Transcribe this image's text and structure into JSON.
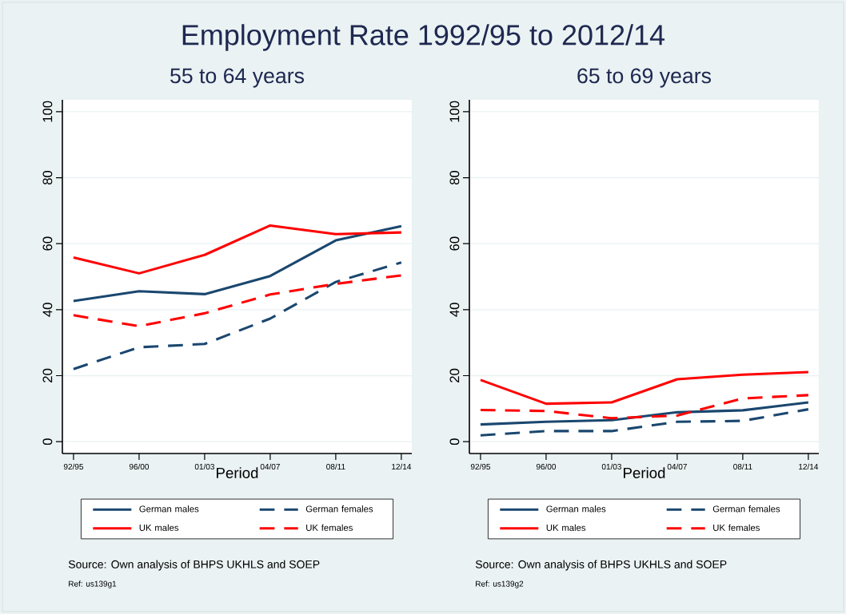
{
  "chart_data": [
    {
      "type": "line",
      "title": "Employment Rate 1992/95 to 2012/14",
      "subtitle": "55 to 64 years",
      "xlabel": "Period",
      "categories": [
        "92/95",
        "96/00",
        "01/03",
        "04/07",
        "08/11",
        "12/14"
      ],
      "series": [
        {
          "name": "German males",
          "color": "#1a476f",
          "line_style": "solid",
          "values": [
            42.6,
            45.6,
            44.7,
            50.2,
            61,
            65.3
          ]
        },
        {
          "name": "German females",
          "color": "#1a476f",
          "line_style": "dashed",
          "values": [
            22,
            28.6,
            29.6,
            37.3,
            48.4,
            54.3
          ]
        },
        {
          "name": "UK males",
          "color": "#ff0000",
          "line_style": "solid",
          "values": [
            55.8,
            51,
            56.6,
            65.5,
            62.9,
            63.4
          ]
        },
        {
          "name": "UK females",
          "color": "#ff0000",
          "line_style": "dashed",
          "values": [
            38.3,
            35,
            38.9,
            44.6,
            47.8,
            50.4
          ]
        }
      ],
      "ylim": [
        -3.6,
        103.6
      ],
      "yticks": [
        0,
        20,
        40,
        60,
        80,
        100
      ],
      "grid": "y",
      "legend": "bottom",
      "annotations": [
        "Source: Own analysis of BHPS UKHLS and SOEP",
        "Ref: us139g1"
      ]
    },
    {
      "type": "line",
      "subtitle": "65 to 69 years",
      "xlabel": "Period",
      "categories": [
        "92/95",
        "96/00",
        "01/03",
        "04/07",
        "08/11",
        "12/14"
      ],
      "series": [
        {
          "name": "German males",
          "color": "#1a476f",
          "line_style": "solid",
          "values": [
            5.2,
            6,
            6.5,
            8.9,
            9.5,
            11.9
          ]
        },
        {
          "name": "German females",
          "color": "#1a476f",
          "line_style": "dashed",
          "values": [
            1.9,
            3.2,
            3.2,
            6,
            6.3,
            9.8
          ]
        },
        {
          "name": "UK males",
          "color": "#ff0000",
          "line_style": "solid",
          "values": [
            18.7,
            11.5,
            11.9,
            18.9,
            20.3,
            21.1
          ]
        },
        {
          "name": "UK females",
          "color": "#ff0000",
          "line_style": "dashed",
          "values": [
            9.6,
            9.3,
            7.1,
            7.9,
            13.1,
            14.1
          ]
        }
      ],
      "ylim": [
        -3.6,
        103.6
      ],
      "yticks": [
        0,
        20,
        40,
        60,
        80,
        100
      ],
      "grid": "y",
      "legend": "bottom",
      "annotations": [
        "Source: Own analysis of BHPS UKHLS and SOEP",
        "Ref: us139g2"
      ]
    }
  ]
}
